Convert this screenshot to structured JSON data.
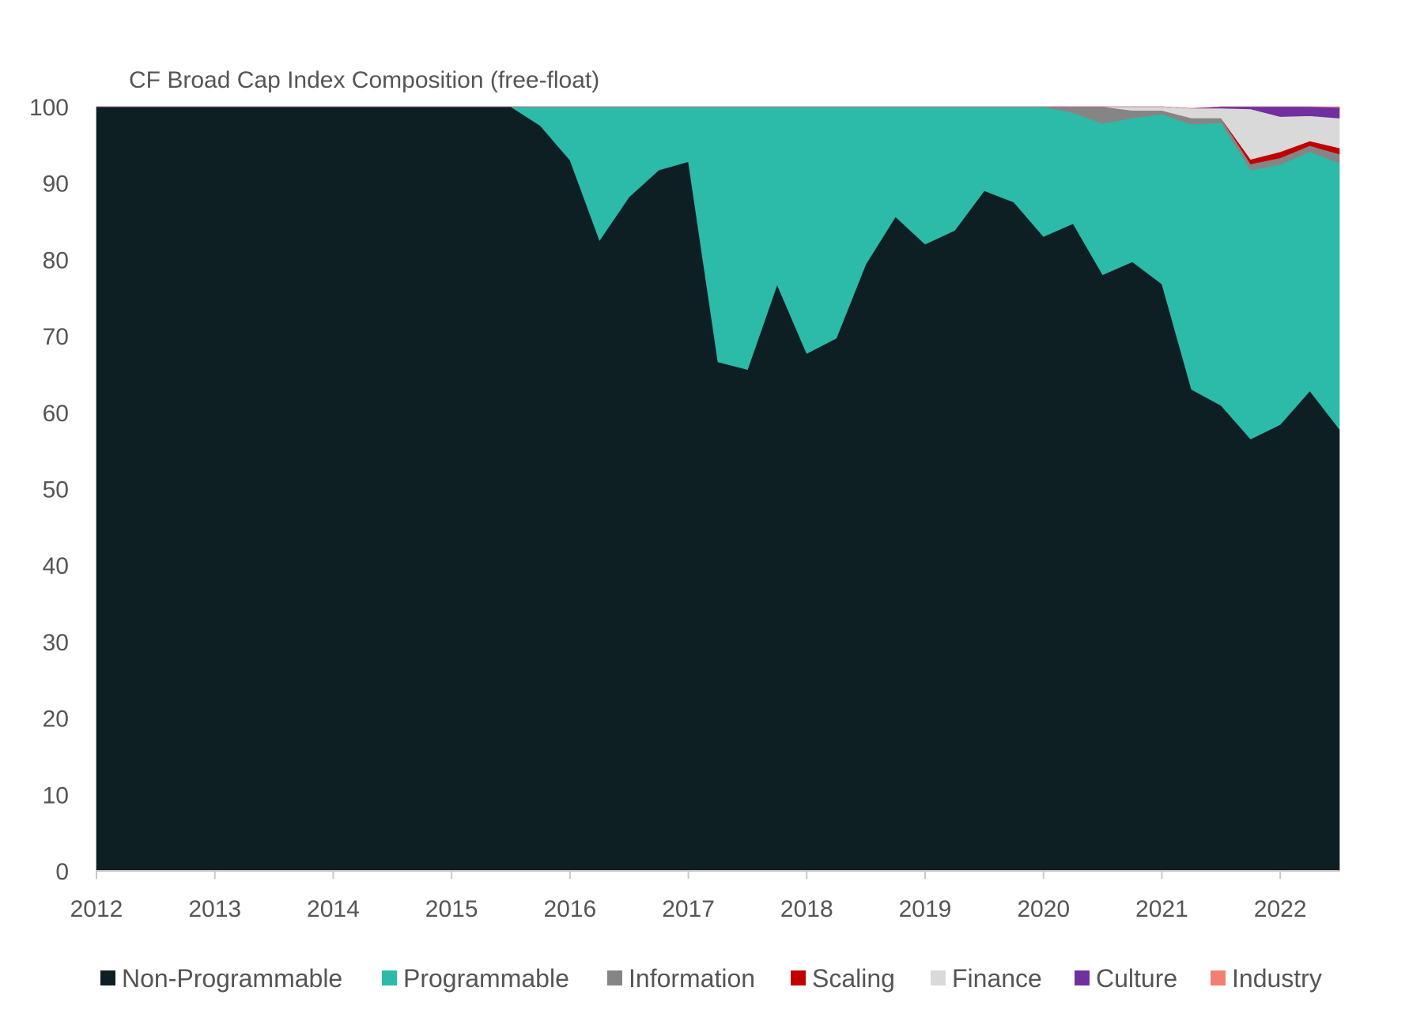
{
  "chart_data": {
    "type": "area",
    "stacked": true,
    "title": "CF Broad Cap Index Composition (free-float)",
    "xlabel": "",
    "ylabel": "",
    "ylim": [
      0,
      100
    ],
    "yticks": [
      "0",
      "10",
      "20",
      "30",
      "40",
      "50",
      "60",
      "70",
      "80",
      "90",
      "100"
    ],
    "xlim": [
      2012,
      2022.5
    ],
    "xticks": [
      "2012",
      "2013",
      "2014",
      "2015",
      "2016",
      "2017",
      "2018",
      "2019",
      "2020",
      "2021",
      "2022"
    ],
    "grid": false,
    "legend_position": "bottom",
    "x": [
      2012,
      2015.5,
      2015.75,
      2016,
      2016.25,
      2016.5,
      2016.75,
      2017,
      2017.25,
      2017.5,
      2017.75,
      2018,
      2018.25,
      2018.5,
      2018.75,
      2019,
      2019.25,
      2019.5,
      2019.75,
      2020,
      2020.25,
      2020.5,
      2020.75,
      2021,
      2021.25,
      2021.5,
      2021.75,
      2022,
      2022.25,
      2022.5
    ],
    "series": [
      {
        "name": "Non-Programmable",
        "color": "#0e1f24",
        "values": [
          100,
          100,
          97.5,
          93,
          82.5,
          88.2,
          91.7,
          92.8,
          66.6,
          65.6,
          76.7,
          67.7,
          69.7,
          79.4,
          85.6,
          82.0,
          83.8,
          89.0,
          87.5,
          83.0,
          84.7,
          78.0,
          79.7,
          76.8,
          63.0,
          60.9,
          56.5,
          58.4,
          62.8,
          57.8
        ]
      },
      {
        "name": "Programmable",
        "color": "#2bbba8",
        "values": [
          0,
          0,
          2.5,
          7,
          17.5,
          11.8,
          8.3,
          7.2,
          33.4,
          34.4,
          23.3,
          32.3,
          30.3,
          20.6,
          14.4,
          18.0,
          16.2,
          11.0,
          12.5,
          17.0,
          14.5,
          19.8,
          18.8,
          22.2,
          34.7,
          37.0,
          35.2,
          34.0,
          31.3,
          34.8
        ]
      },
      {
        "name": "Information",
        "color": "#858585",
        "values": [
          0,
          0,
          0,
          0,
          0,
          0,
          0,
          0,
          0,
          0,
          0,
          0,
          0,
          0,
          0,
          0,
          0,
          0,
          0,
          0,
          0.8,
          2.2,
          1.0,
          0.5,
          0.8,
          0.6,
          0.8,
          0.9,
          0.8,
          1.2
        ]
      },
      {
        "name": "Scaling",
        "color": "#c00000",
        "values": [
          0,
          0,
          0,
          0,
          0,
          0,
          0,
          0,
          0,
          0,
          0,
          0,
          0,
          0,
          0,
          0,
          0,
          0,
          0,
          0,
          0,
          0,
          0,
          0,
          0,
          0,
          0.6,
          0.8,
          0.6,
          0.8
        ]
      },
      {
        "name": "Finance",
        "color": "#d9d9d9",
        "values": [
          0,
          0,
          0,
          0,
          0,
          0,
          0,
          0,
          0,
          0,
          0,
          0,
          0,
          0,
          0,
          0,
          0,
          0,
          0,
          0,
          0,
          0,
          0.5,
          0.5,
          1.3,
          1.3,
          6.6,
          4.6,
          3.3,
          3.9
        ]
      },
      {
        "name": "Culture",
        "color": "#7030a0",
        "values": [
          0,
          0,
          0,
          0,
          0,
          0,
          0,
          0,
          0,
          0,
          0,
          0,
          0,
          0,
          0,
          0,
          0,
          0,
          0,
          0,
          0,
          0,
          0,
          0,
          0,
          0.2,
          0.3,
          1.3,
          1.2,
          1.4
        ]
      },
      {
        "name": "Industry",
        "color": "#f08070",
        "values": [
          0,
          0,
          0,
          0,
          0,
          0,
          0,
          0,
          0,
          0,
          0,
          0,
          0,
          0,
          0,
          0,
          0,
          0,
          0,
          0,
          0,
          0,
          0,
          0,
          0,
          0,
          0,
          0,
          0,
          0.1
        ]
      }
    ]
  }
}
